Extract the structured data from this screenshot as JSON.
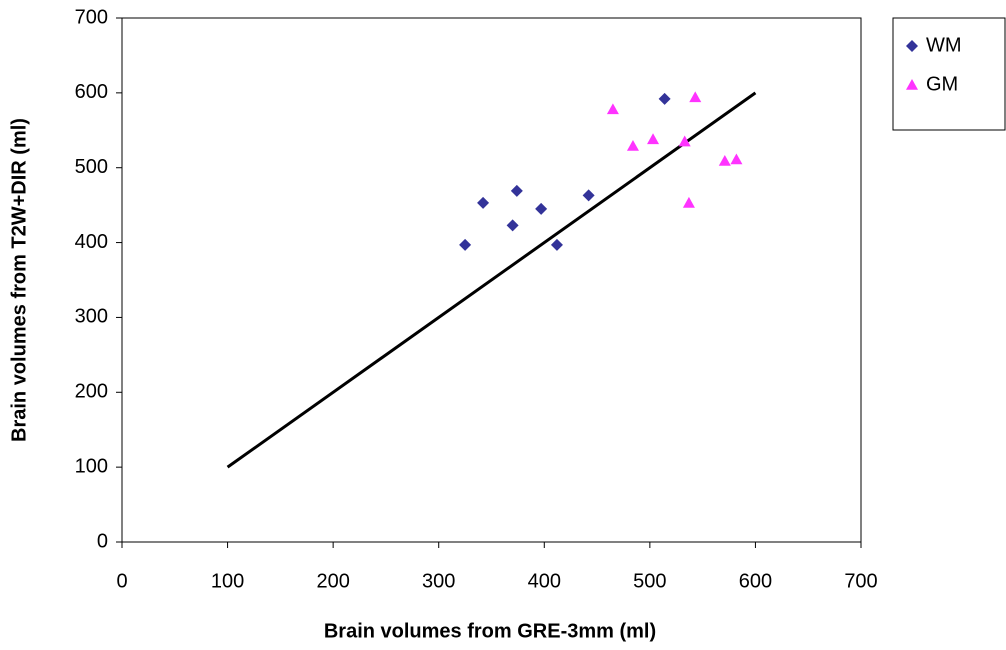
{
  "chart_data": {
    "type": "scatter",
    "x_label": "Brain volumes from GRE-3mm (ml)",
    "y_label": "Brain volumes from T2W+DIR (ml)",
    "xlim": [
      0,
      700
    ],
    "xticks": [
      0,
      100,
      200,
      300,
      400,
      500,
      600,
      700
    ],
    "ylim": [
      0,
      700
    ],
    "yticks": [
      0,
      100,
      200,
      300,
      400,
      500,
      600,
      700
    ],
    "legend": "top-right",
    "series": [
      {
        "name": "WM",
        "color": "#333399",
        "marker": "diamond",
        "x": [
          325,
          342,
          374,
          370,
          397,
          412,
          442,
          514
        ],
        "values": [
          397,
          453,
          469,
          423,
          445,
          397,
          463,
          592
        ]
      },
      {
        "name": "GM",
        "color": "#ff33ff",
        "marker": "triangle",
        "x": [
          465,
          484,
          503,
          543,
          533,
          537,
          571,
          582
        ],
        "values": [
          578,
          529,
          538,
          594,
          535,
          453,
          509,
          511
        ]
      }
    ],
    "reference_line": {
      "color": "#000000",
      "x": [
        100,
        600
      ],
      "values": [
        100,
        600
      ]
    }
  }
}
